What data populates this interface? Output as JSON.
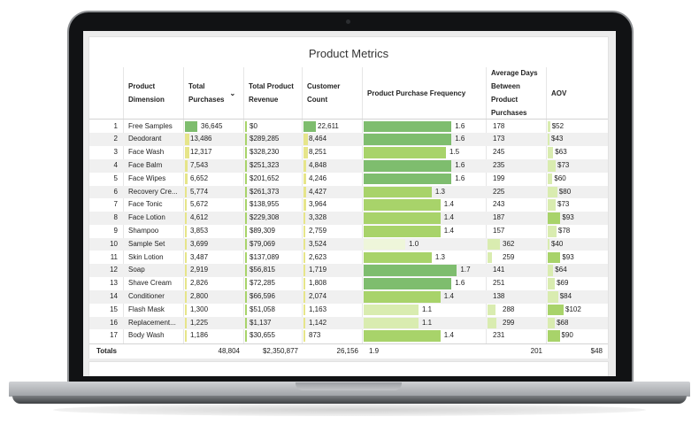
{
  "title": "Product Metrics",
  "headers": {
    "dimension": [
      "Product",
      "Dimension"
    ],
    "purchases": [
      "Total",
      "Purchases"
    ],
    "revenue": [
      "Total Product",
      "Revenue"
    ],
    "customers": [
      "Customer",
      "Count"
    ],
    "frequency": [
      "Product Purchase Frequency"
    ],
    "days": [
      "Average Days",
      "Between",
      "Product",
      "Purchases"
    ],
    "aov": [
      "AOV"
    ],
    "sort_icon": "chevron-down"
  },
  "colors": {
    "bar_dark": "#7ebd6e",
    "bar_mid": "#a8d36a",
    "bar_light": "#d9ecb0",
    "bar_faint": "#eef6da",
    "bar_yellow": "#e6e58a"
  },
  "rows": [
    {
      "n": "1",
      "name": "Free Samples",
      "purchases": "36,645",
      "p": 1.0,
      "revenue": "$0",
      "r": 0.0,
      "customers": "22,611",
      "c": 1.0,
      "freq": "1.6",
      "f": 0.8,
      "days": "178",
      "d": 0.0,
      "aov": "$52",
      "a": 0.15
    },
    {
      "n": "2",
      "name": "Deodorant",
      "purchases": "13,486",
      "p": 0.37,
      "revenue": "$289,285",
      "r": 0.12,
      "customers": "8,464",
      "c": 0.37,
      "freq": "1.6",
      "f": 0.8,
      "days": "173",
      "d": 0.0,
      "aov": "$43",
      "a": 0.02
    },
    {
      "n": "3",
      "name": "Face Wash",
      "purchases": "12,317",
      "p": 0.34,
      "revenue": "$328,230",
      "r": 0.14,
      "customers": "8,251",
      "c": 0.36,
      "freq": "1.5",
      "f": 0.75,
      "days": "245",
      "d": 0.0,
      "aov": "$63",
      "a": 0.35
    },
    {
      "n": "4",
      "name": "Face Balm",
      "purchases": "7,543",
      "p": 0.21,
      "revenue": "$251,323",
      "r": 0.11,
      "customers": "4,848",
      "c": 0.21,
      "freq": "1.6",
      "f": 0.8,
      "days": "235",
      "d": 0.0,
      "aov": "$73",
      "a": 0.5
    },
    {
      "n": "5",
      "name": "Face Wipes",
      "purchases": "6,652",
      "p": 0.18,
      "revenue": "$201,652",
      "r": 0.09,
      "customers": "4,246",
      "c": 0.19,
      "freq": "1.6",
      "f": 0.8,
      "days": "199",
      "d": 0.0,
      "aov": "$60",
      "a": 0.3
    },
    {
      "n": "6",
      "name": "Recovery Cre...",
      "purchases": "5,774",
      "p": 0.16,
      "revenue": "$261,373",
      "r": 0.11,
      "customers": "4,427",
      "c": 0.2,
      "freq": "1.3",
      "f": 0.62,
      "days": "225",
      "d": 0.0,
      "aov": "$80",
      "a": 0.6
    },
    {
      "n": "7",
      "name": "Face Tonic",
      "purchases": "5,672",
      "p": 0.15,
      "revenue": "$138,955",
      "r": 0.06,
      "customers": "3,964",
      "c": 0.18,
      "freq": "1.4",
      "f": 0.7,
      "days": "243",
      "d": 0.0,
      "aov": "$73",
      "a": 0.5
    },
    {
      "n": "8",
      "name": "Face Lotion",
      "purchases": "4,612",
      "p": 0.13,
      "revenue": "$229,308",
      "r": 0.1,
      "customers": "3,328",
      "c": 0.15,
      "freq": "1.4",
      "f": 0.7,
      "days": "187",
      "d": 0.0,
      "aov": "$93",
      "a": 0.8
    },
    {
      "n": "9",
      "name": "Shampoo",
      "purchases": "3,853",
      "p": 0.11,
      "revenue": "$89,309",
      "r": 0.04,
      "customers": "2,759",
      "c": 0.12,
      "freq": "1.4",
      "f": 0.7,
      "days": "157",
      "d": 0.0,
      "aov": "$78",
      "a": 0.55
    },
    {
      "n": "10",
      "name": "Sample Set",
      "purchases": "3,699",
      "p": 0.1,
      "revenue": "$79,069",
      "r": 0.03,
      "customers": "3,524",
      "c": 0.16,
      "freq": "1.0",
      "f": 0.38,
      "days": "362",
      "d": 0.28,
      "aov": "$40",
      "a": 0.0
    },
    {
      "n": "11",
      "name": "Skin Lotion",
      "purchases": "3,487",
      "p": 0.1,
      "revenue": "$137,089",
      "r": 0.06,
      "customers": "2,623",
      "c": 0.12,
      "freq": "1.3",
      "f": 0.62,
      "days": "259",
      "d": 0.1,
      "aov": "$93",
      "a": 0.8
    },
    {
      "n": "12",
      "name": "Soap",
      "purchases": "2,919",
      "p": 0.08,
      "revenue": "$56,815",
      "r": 0.02,
      "customers": "1,719",
      "c": 0.08,
      "freq": "1.7",
      "f": 0.85,
      "days": "141",
      "d": 0.0,
      "aov": "$64",
      "a": 0.35
    },
    {
      "n": "13",
      "name": "Shave Cream",
      "purchases": "2,826",
      "p": 0.08,
      "revenue": "$72,285",
      "r": 0.03,
      "customers": "1,808",
      "c": 0.08,
      "freq": "1.6",
      "f": 0.8,
      "days": "251",
      "d": 0.0,
      "aov": "$69",
      "a": 0.45
    },
    {
      "n": "14",
      "name": "Conditioner",
      "purchases": "2,800",
      "p": 0.08,
      "revenue": "$66,596",
      "r": 0.03,
      "customers": "2,074",
      "c": 0.09,
      "freq": "1.4",
      "f": 0.7,
      "days": "138",
      "d": 0.0,
      "aov": "$84",
      "a": 0.65
    },
    {
      "n": "15",
      "name": "Flash Mask",
      "purchases": "1,300",
      "p": 0.04,
      "revenue": "$51,058",
      "r": 0.02,
      "customers": "1,163",
      "c": 0.05,
      "freq": "1.1",
      "f": 0.5,
      "days": "288",
      "d": 0.18,
      "aov": "$102",
      "a": 1.0
    },
    {
      "n": "16",
      "name": "Replacement...",
      "purchases": "1,225",
      "p": 0.03,
      "revenue": "$1,137",
      "r": 0.0,
      "customers": "1,142",
      "c": 0.05,
      "freq": "1.1",
      "f": 0.5,
      "days": "299",
      "d": 0.2,
      "aov": "$68",
      "a": 0.45
    },
    {
      "n": "17",
      "name": "Body Wash",
      "purchases": "1,186",
      "p": 0.03,
      "revenue": "$30,655",
      "r": 0.01,
      "customers": "873",
      "c": 0.04,
      "freq": "1.4",
      "f": 0.7,
      "days": "231",
      "d": 0.0,
      "aov": "$90",
      "a": 0.75
    }
  ],
  "totals": {
    "label": "Totals",
    "purchases": "48,804",
    "revenue": "$2,350,877",
    "customers": "26,156",
    "freq": "1.9",
    "days": "201",
    "aov": "$48"
  }
}
